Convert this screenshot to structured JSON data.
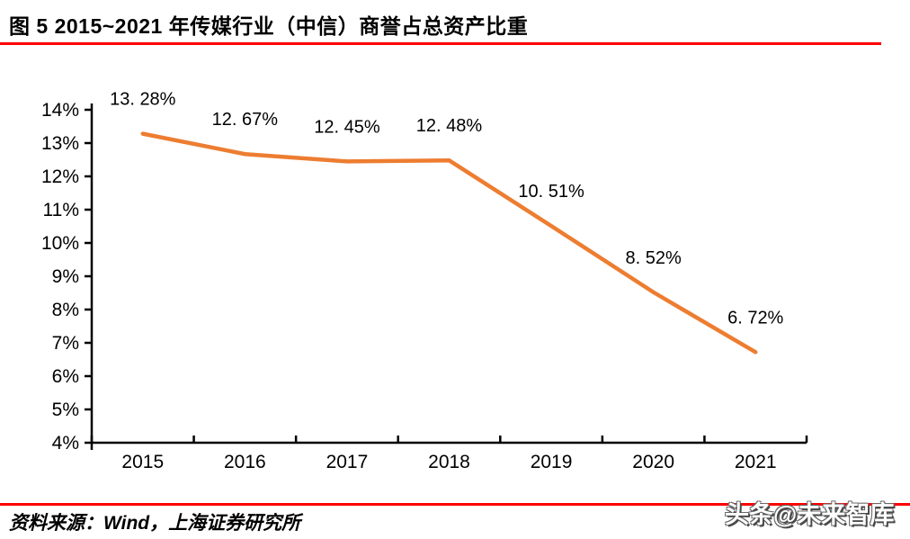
{
  "title": "图 5 2015~2021 年传媒行业（中信）商誉占总资产比重",
  "accent_color": "#fe0000",
  "chart_data": {
    "type": "line",
    "title": "2015~2021 年传媒行业（中信）商誉占总资产比重",
    "categories": [
      "2015",
      "2016",
      "2017",
      "2018",
      "2019",
      "2020",
      "2021"
    ],
    "values": [
      13.28,
      12.67,
      12.45,
      12.48,
      10.51,
      8.52,
      6.72
    ],
    "data_labels": [
      "13. 28%",
      "12. 67%",
      "12. 45%",
      "12. 48%",
      "10. 51%",
      "8. 52%",
      "6. 72%"
    ],
    "xlabel": "",
    "ylabel": "",
    "ylim": [
      4,
      14
    ],
    "ytick_step": 1,
    "ytick_labels": [
      "4%",
      "5%",
      "6%",
      "7%",
      "8%",
      "9%",
      "10%",
      "11%",
      "12%",
      "13%",
      "14%"
    ],
    "grid": false,
    "legend": "none",
    "line_color": "#ed7d31",
    "axis_color": "#000000",
    "label_color": "#000000"
  },
  "footer": {
    "source_text": "资料来源：Wind，上海证券研究所"
  },
  "watermark": "头条@未来智库"
}
